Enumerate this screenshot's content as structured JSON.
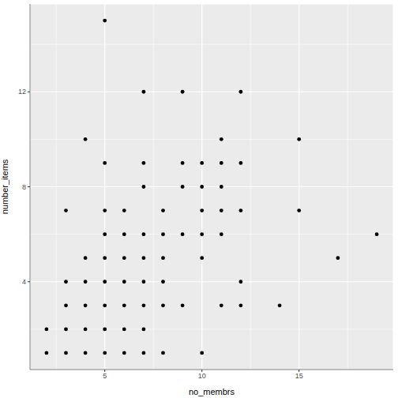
{
  "chart_data": {
    "type": "scatter",
    "x_label": "no_membrs",
    "y_label": "number_items",
    "x": [
      5,
      7,
      9,
      12,
      4,
      11,
      15,
      5,
      7,
      9,
      10,
      11,
      12,
      7,
      9,
      10,
      11,
      3,
      5,
      6,
      8,
      10,
      11,
      12,
      15,
      5,
      6,
      7,
      8,
      9,
      10,
      11,
      19,
      4,
      5,
      6,
      7,
      8,
      10,
      17,
      3,
      4,
      5,
      6,
      7,
      8,
      12,
      3,
      4,
      5,
      6,
      7,
      8,
      9,
      11,
      12,
      14,
      2,
      3,
      4,
      5,
      6,
      7,
      2,
      3,
      4,
      5,
      6,
      7,
      8,
      10
    ],
    "values": [
      15,
      12,
      12,
      12,
      10,
      10,
      10,
      9,
      9,
      9,
      9,
      9,
      9,
      8,
      8,
      8,
      8,
      7,
      7,
      7,
      7,
      7,
      7,
      7,
      7,
      6,
      6,
      6,
      6,
      6,
      6,
      6,
      6,
      5,
      5,
      5,
      5,
      5,
      5,
      5,
      4,
      4,
      4,
      4,
      4,
      4,
      4,
      3,
      3,
      3,
      3,
      3,
      3,
      3,
      3,
      3,
      3,
      2,
      2,
      2,
      2,
      2,
      2,
      1,
      1,
      1,
      1,
      1,
      1,
      1,
      1
    ],
    "color": "#000000",
    "xlim": [
      1.15,
      19.85
    ],
    "ylim": [
      0.3,
      15.7
    ],
    "xticks": [
      5,
      10,
      15
    ],
    "yticks": [
      4,
      8,
      12
    ],
    "grid": true
  }
}
